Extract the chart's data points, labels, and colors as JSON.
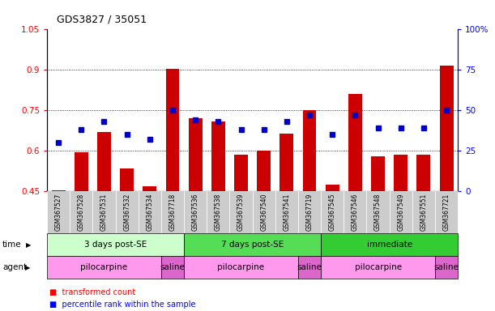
{
  "title": "GDS3827 / 35051",
  "samples": [
    "GSM367527",
    "GSM367528",
    "GSM367531",
    "GSM367532",
    "GSM367534",
    "GSM367718",
    "GSM367536",
    "GSM367538",
    "GSM367539",
    "GSM367540",
    "GSM367541",
    "GSM367719",
    "GSM367545",
    "GSM367546",
    "GSM367548",
    "GSM367549",
    "GSM367551",
    "GSM367721"
  ],
  "bar_values": [
    0.452,
    0.595,
    0.67,
    0.535,
    0.468,
    0.905,
    0.72,
    0.71,
    0.585,
    0.6,
    0.665,
    0.75,
    0.475,
    0.81,
    0.58,
    0.585,
    0.585,
    0.915
  ],
  "dot_values_pct": [
    30,
    38,
    43,
    35,
    32,
    50,
    44,
    43,
    38,
    38,
    43,
    47,
    35,
    47,
    39,
    39,
    39,
    50
  ],
  "ylim_left": [
    0.45,
    1.05
  ],
  "ylim_right": [
    0,
    100
  ],
  "yticks_left": [
    0.45,
    0.6,
    0.75,
    0.9,
    1.05
  ],
  "yticks_right": [
    0,
    25,
    50,
    75,
    100
  ],
  "bar_color": "#cc0000",
  "dot_color": "#0000cc",
  "time_groups": [
    {
      "label": "3 days post-SE",
      "start": 0,
      "end": 5,
      "color": "#ccffcc"
    },
    {
      "label": "7 days post-SE",
      "start": 6,
      "end": 11,
      "color": "#55dd55"
    },
    {
      "label": "immediate",
      "start": 12,
      "end": 17,
      "color": "#33cc33"
    }
  ],
  "agent_groups": [
    {
      "label": "pilocarpine",
      "start": 0,
      "end": 4,
      "color": "#ff99ee"
    },
    {
      "label": "saline",
      "start": 5,
      "end": 5,
      "color": "#dd66cc"
    },
    {
      "label": "pilocarpine",
      "start": 6,
      "end": 10,
      "color": "#ff99ee"
    },
    {
      "label": "saline",
      "start": 11,
      "end": 11,
      "color": "#dd66cc"
    },
    {
      "label": "pilocarpine",
      "start": 12,
      "end": 16,
      "color": "#ff99ee"
    },
    {
      "label": "saline",
      "start": 17,
      "end": 17,
      "color": "#dd66cc"
    }
  ],
  "legend_bar_label": "transformed count",
  "legend_dot_label": "percentile rank within the sample",
  "tick_bg_color": "#cccccc",
  "hgrid_values": [
    0.6,
    0.75,
    0.9
  ],
  "bar_bottom": 0.45,
  "bar_width": 0.6
}
